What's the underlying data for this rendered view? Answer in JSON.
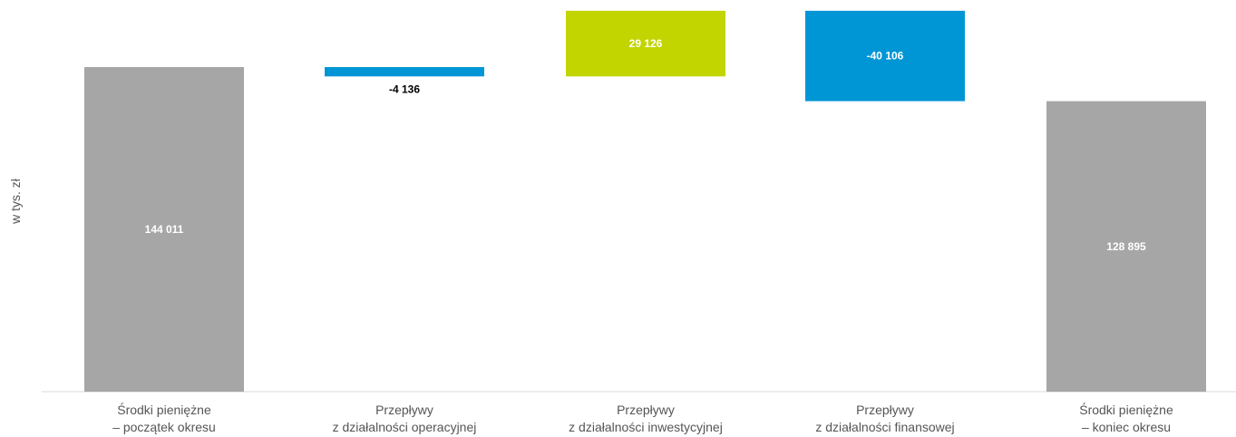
{
  "chart_data": {
    "type": "bar",
    "subtype": "waterfall",
    "ylabel": "w tys. zł",
    "xlabel": "",
    "title": "",
    "categories": [
      [
        "Środki pieniężne",
        "– początek okresu"
      ],
      [
        "Przepływy",
        "z działalności operacyjnej"
      ],
      [
        "Przepływy",
        "z działalności inwestycyjnej"
      ],
      [
        "Przepływy",
        "z działalności finansowej"
      ],
      [
        "Środki pieniężne",
        "– koniec okresu"
      ]
    ],
    "values": [
      144011,
      -4136,
      29126,
      -40106,
      128895
    ],
    "kinds": [
      "total",
      "delta",
      "delta",
      "delta",
      "total"
    ],
    "data_labels": [
      "144 011",
      "-4 136",
      "29 126",
      "-40 106",
      "128 895"
    ],
    "colors": [
      "#a6a6a6",
      "#0096d6",
      "#c2d500",
      "#0096d6",
      "#a6a6a6"
    ],
    "label_colors": [
      "#ffffff",
      "#000000",
      "#ffffff",
      "#ffffff",
      "#ffffff"
    ],
    "ylim": [
      0,
      170000
    ],
    "grid": false,
    "legend": "none"
  }
}
